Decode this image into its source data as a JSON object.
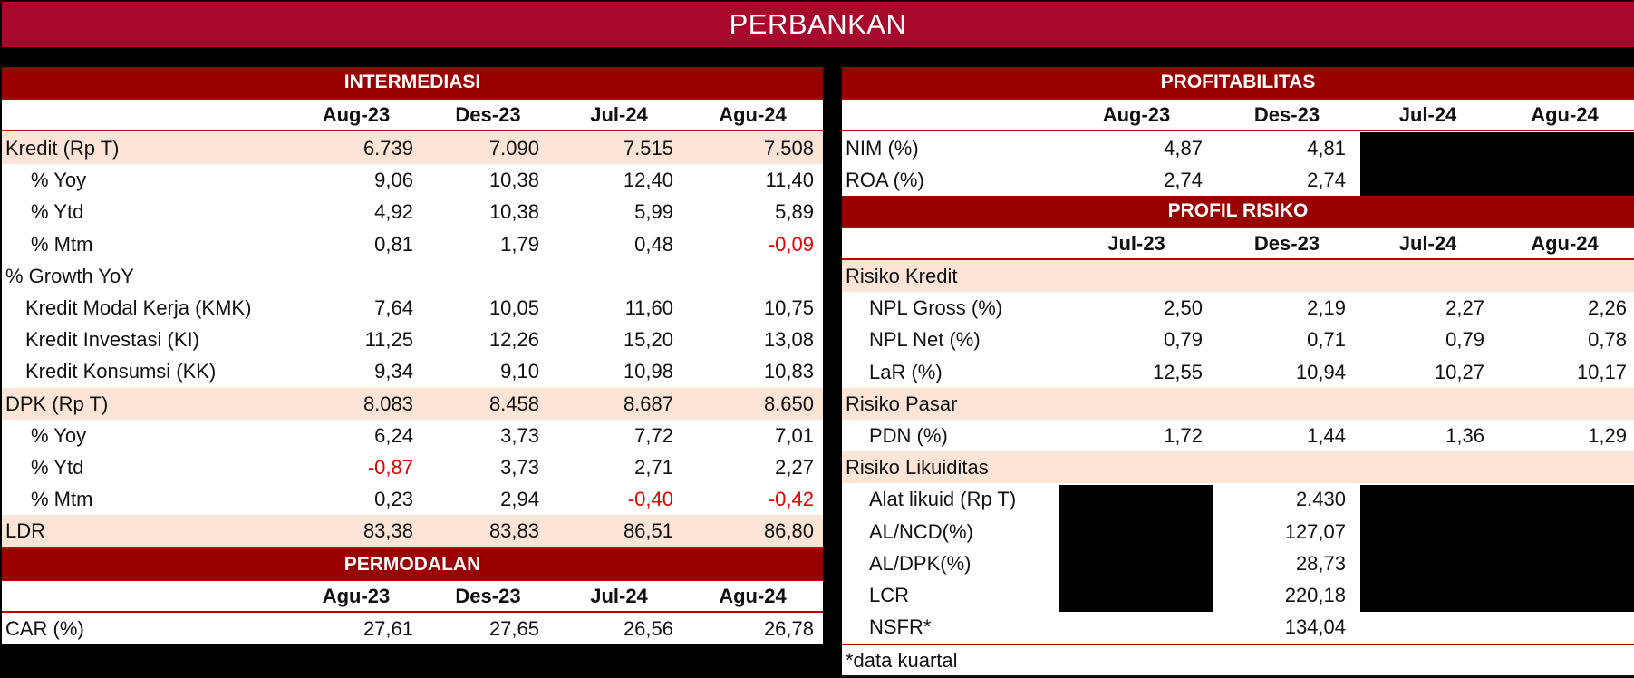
{
  "title": "PERBANKAN",
  "intermediasi": {
    "header": "INTERMEDIASI",
    "columns": [
      "Aug-23",
      "Des-23",
      "Jul-24",
      "Agu-24"
    ],
    "rows": [
      {
        "label": "Kredit (Rp T)",
        "values": [
          "6.739",
          "7.090",
          "7.515",
          "7.508"
        ],
        "highlight": true,
        "indent": 0
      },
      {
        "label": "% Yoy",
        "values": [
          "9,06",
          "10,38",
          "12,40",
          "11,40"
        ],
        "indent": 1
      },
      {
        "label": "% Ytd",
        "values": [
          "4,92",
          "10,38",
          "5,99",
          "5,89"
        ],
        "indent": 1
      },
      {
        "label": "% Mtm",
        "values": [
          "0,81",
          "1,79",
          "0,48",
          "-0,09"
        ],
        "indent": 1
      },
      {
        "label": "% Growth YoY",
        "values": [
          "",
          "",
          "",
          ""
        ],
        "indent": 0
      },
      {
        "label": "Kredit Modal Kerja (KMK)",
        "values": [
          "7,64",
          "10,05",
          "11,60",
          "10,75"
        ],
        "indent": 2
      },
      {
        "label": "Kredit Investasi (KI)",
        "values": [
          "11,25",
          "12,26",
          "15,20",
          "13,08"
        ],
        "indent": 2
      },
      {
        "label": "Kredit Konsumsi (KK)",
        "values": [
          "9,34",
          "9,10",
          "10,98",
          "10,83"
        ],
        "indent": 2
      },
      {
        "label": "DPK (Rp T)",
        "values": [
          "8.083",
          "8.458",
          "8.687",
          "8.650"
        ],
        "highlight": true,
        "indent": 0
      },
      {
        "label": "% Yoy",
        "values": [
          "6,24",
          "3,73",
          "7,72",
          "7,01"
        ],
        "indent": 1
      },
      {
        "label": "% Ytd",
        "values": [
          "-0,87",
          "3,73",
          "2,71",
          "2,27"
        ],
        "indent": 1
      },
      {
        "label": "% Mtm",
        "values": [
          "0,23",
          "2,94",
          "-0,40",
          "-0,42"
        ],
        "indent": 1
      },
      {
        "label": "LDR",
        "values": [
          "83,38",
          "83,83",
          "86,51",
          "86,80"
        ],
        "highlight": true,
        "indent": 0
      }
    ]
  },
  "permodalan": {
    "header": "PERMODALAN",
    "columns": [
      "Agu-23",
      "Des-23",
      "Jul-24",
      "Agu-24"
    ],
    "rows": [
      {
        "label": "CAR (%)",
        "values": [
          "27,61",
          "27,65",
          "26,56",
          "26,78"
        ]
      }
    ]
  },
  "profitabilitas": {
    "header": "PROFITABILITAS",
    "columns": [
      "Aug-23",
      "Des-23",
      "Jul-24",
      "Agu-24"
    ],
    "rows": [
      {
        "label": "NIM (%)",
        "values": [
          "4,87",
          "4,81",
          "",
          ""
        ]
      },
      {
        "label": "ROA (%)",
        "values": [
          "2,74",
          "2,74",
          "",
          ""
        ]
      }
    ],
    "redacted_note": "Jul-24 and Agu-24 values redacted (black box)"
  },
  "profil_risiko": {
    "header": "PROFIL RISIKO",
    "columns": [
      "Jul-23",
      "Des-23",
      "Jul-24",
      "Agu-24"
    ],
    "rows": [
      {
        "label": "Risiko Kredit",
        "values": [
          "",
          "",
          "",
          ""
        ],
        "highlight": true,
        "indent": 0
      },
      {
        "label": "NPL Gross (%)",
        "values": [
          "2,50",
          "2,19",
          "2,27",
          "2,26"
        ],
        "indent": 1
      },
      {
        "label": "NPL Net (%)",
        "values": [
          "0,79",
          "0,71",
          "0,79",
          "0,78"
        ],
        "indent": 1
      },
      {
        "label": "LaR (%)",
        "values": [
          "12,55",
          "10,94",
          "10,27",
          "10,17"
        ],
        "indent": 1
      },
      {
        "label": "Risiko Pasar",
        "values": [
          "",
          "",
          "",
          ""
        ],
        "highlight": true,
        "indent": 0
      },
      {
        "label": "PDN (%)",
        "values": [
          "1,72",
          "1,44",
          "1,36",
          "1,29"
        ],
        "indent": 1
      },
      {
        "label": "Risiko Likuiditas",
        "values": [
          "",
          "",
          "",
          ""
        ],
        "highlight": true,
        "indent": 0
      },
      {
        "label": "Alat likuid (Rp T)",
        "values": [
          "",
          "2.430",
          "",
          ""
        ],
        "indent": 1
      },
      {
        "label": "AL/NCD(%)",
        "values": [
          "",
          "127,07",
          "",
          ""
        ],
        "indent": 1
      },
      {
        "label": "AL/DPK(%)",
        "values": [
          "",
          "28,73",
          "",
          ""
        ],
        "indent": 1
      },
      {
        "label": "LCR",
        "values": [
          "",
          "220,18",
          "",
          ""
        ],
        "indent": 1
      },
      {
        "label": "NSFR*",
        "values": [
          "",
          "134,04",
          "",
          ""
        ],
        "indent": 1
      }
    ],
    "footnote": "*data kuartal"
  },
  "colors": {
    "title_band": "#A6092B",
    "section_header": "#990000",
    "rule": "#C00000",
    "highlight_row": "#FCE4D6",
    "negative": "#E00000"
  }
}
